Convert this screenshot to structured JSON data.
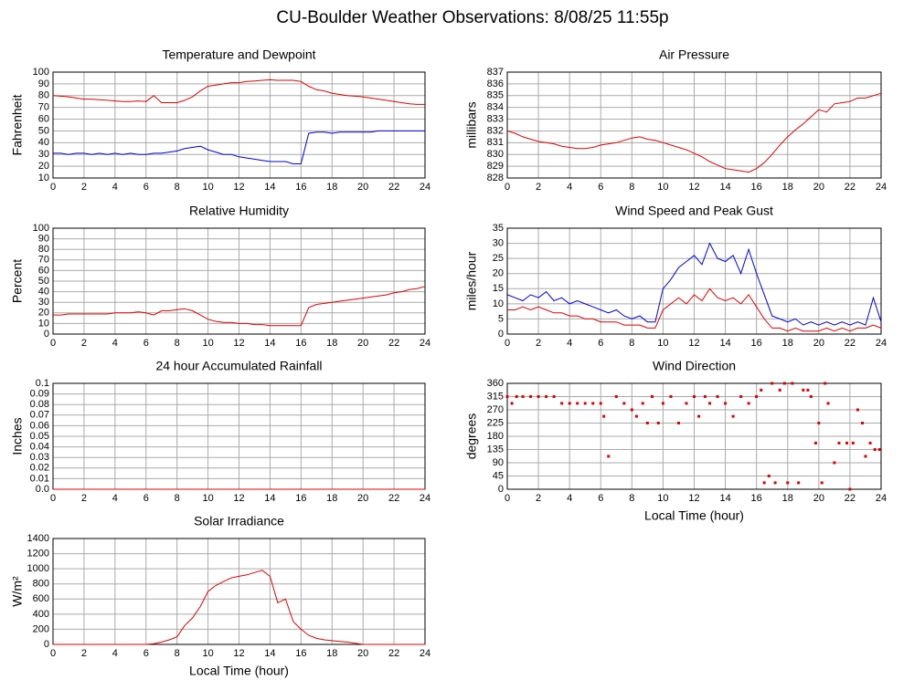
{
  "title": "CU-Boulder Weather Observations: 8/08/25 11:55p",
  "chart_data": [
    {
      "type": "line",
      "title": "Temperature and Dewpoint",
      "ylabel": "Fahrenheit",
      "x": [
        0,
        0.5,
        1,
        1.5,
        2,
        2.5,
        3,
        3.5,
        4,
        4.5,
        5,
        5.5,
        6,
        6.5,
        7,
        7.5,
        8,
        8.5,
        9,
        9.5,
        10,
        10.5,
        11,
        11.5,
        12,
        12.5,
        13,
        13.5,
        14,
        14.5,
        15,
        15.5,
        16,
        16.5,
        17,
        17.5,
        18,
        18.5,
        19,
        19.5,
        20,
        20.5,
        21,
        21.5,
        22,
        22.5,
        23,
        23.5,
        24
      ],
      "series": [
        {
          "color": "#e00000",
          "values": [
            80,
            79.5,
            79,
            78,
            77,
            77,
            76.5,
            76,
            75.5,
            75,
            75,
            75.5,
            75,
            80,
            74,
            74,
            74,
            76,
            79,
            84,
            88,
            89,
            90,
            91,
            91,
            92,
            92.5,
            93,
            93.5,
            93,
            93,
            93,
            92,
            88,
            85,
            84,
            82,
            81,
            80,
            79.5,
            79,
            78,
            77,
            76,
            75,
            74,
            73,
            72.5,
            72.5
          ]
        },
        {
          "color": "#0000dd",
          "values": [
            31,
            31,
            30,
            31,
            31,
            30,
            31,
            30,
            31,
            30,
            31,
            30,
            30,
            31,
            31,
            32,
            33,
            35,
            36,
            37,
            34,
            32,
            30,
            30,
            28,
            27,
            26,
            25,
            24,
            24,
            24,
            22,
            22,
            48,
            49,
            49,
            48,
            49,
            49,
            49,
            49,
            49,
            50,
            50,
            50,
            50,
            50,
            50,
            50
          ]
        }
      ],
      "xlim": [
        0,
        24
      ],
      "xticks": [
        0,
        2,
        4,
        6,
        8,
        10,
        12,
        14,
        16,
        18,
        20,
        22,
        24
      ],
      "ylim": [
        10,
        100
      ],
      "yticks": [
        10,
        20,
        30,
        40,
        50,
        60,
        70,
        80,
        90,
        100
      ],
      "grid": true
    },
    {
      "type": "line",
      "title": "Air Pressure",
      "ylabel": "millibars",
      "x": [
        0,
        0.5,
        1,
        1.5,
        2,
        2.5,
        3,
        3.5,
        4,
        4.5,
        5,
        5.5,
        6,
        6.5,
        7,
        7.5,
        8,
        8.5,
        9,
        9.5,
        10,
        10.5,
        11,
        11.5,
        12,
        12.5,
        13,
        13.5,
        14,
        14.5,
        15,
        15.5,
        16,
        16.5,
        17,
        17.5,
        18,
        18.5,
        19,
        19.5,
        20,
        20.5,
        21,
        21.5,
        22,
        22.5,
        23,
        23.5,
        24
      ],
      "color": "#e00000",
      "values": [
        832,
        831.8,
        831.5,
        831.3,
        831.1,
        831,
        830.9,
        830.7,
        830.6,
        830.5,
        830.5,
        830.6,
        830.8,
        830.9,
        831,
        831.2,
        831.4,
        831.5,
        831.3,
        831.2,
        831,
        830.8,
        830.6,
        830.4,
        830.1,
        829.8,
        829.4,
        829.1,
        828.8,
        828.7,
        828.6,
        828.5,
        828.8,
        829.3,
        830,
        830.8,
        831.5,
        832.1,
        832.6,
        833.2,
        833.8,
        833.6,
        834.3,
        834.4,
        834.5,
        834.8,
        834.8,
        835,
        835.2
      ],
      "xlim": [
        0,
        24
      ],
      "xticks": [
        0,
        2,
        4,
        6,
        8,
        10,
        12,
        14,
        16,
        18,
        20,
        22,
        24
      ],
      "ylim": [
        828,
        837
      ],
      "yticks": [
        828,
        829,
        830,
        831,
        832,
        833,
        834,
        835,
        836,
        837
      ],
      "grid": true
    },
    {
      "type": "line",
      "title": "Relative Humidity",
      "ylabel": "Percent",
      "x": [
        0,
        0.5,
        1,
        1.5,
        2,
        2.5,
        3,
        3.5,
        4,
        4.5,
        5,
        5.5,
        6,
        6.5,
        7,
        7.5,
        8,
        8.5,
        9,
        9.5,
        10,
        10.5,
        11,
        11.5,
        12,
        12.5,
        13,
        13.5,
        14,
        14.5,
        15,
        15.5,
        16,
        16.5,
        17,
        17.5,
        18,
        18.5,
        19,
        19.5,
        20,
        20.5,
        21,
        21.5,
        22,
        22.5,
        23,
        23.5,
        24
      ],
      "color": "#e00000",
      "values": [
        18,
        18,
        19,
        19,
        19,
        19,
        19,
        19,
        20,
        20,
        20,
        21,
        20,
        18,
        22,
        22,
        23,
        24,
        22,
        18,
        14,
        12,
        11,
        11,
        10,
        10,
        9,
        9,
        8,
        8,
        8,
        8,
        8,
        25,
        28,
        29,
        30,
        31,
        32,
        33,
        34,
        35,
        36,
        37,
        39,
        40,
        42,
        43,
        45
      ],
      "xlim": [
        0,
        24
      ],
      "xticks": [
        0,
        2,
        4,
        6,
        8,
        10,
        12,
        14,
        16,
        18,
        20,
        22,
        24
      ],
      "ylim": [
        0,
        100
      ],
      "yticks": [
        0,
        10,
        20,
        30,
        40,
        50,
        60,
        70,
        80,
        90,
        100
      ],
      "grid": true
    },
    {
      "type": "line",
      "title": "Wind Speed and Peak Gust",
      "ylabel": "miles/hour",
      "x": [
        0,
        0.5,
        1,
        1.5,
        2,
        2.5,
        3,
        3.5,
        4,
        4.5,
        5,
        5.5,
        6,
        6.5,
        7,
        7.5,
        8,
        8.5,
        9,
        9.5,
        10,
        10.5,
        11,
        11.5,
        12,
        12.5,
        13,
        13.5,
        14,
        14.5,
        15,
        15.5,
        16,
        16.5,
        17,
        17.5,
        18,
        18.5,
        19,
        19.5,
        20,
        20.5,
        21,
        21.5,
        22,
        22.5,
        23,
        23.5,
        24
      ],
      "series": [
        {
          "color": "#0000dd",
          "values": [
            13,
            12,
            11,
            13,
            12,
            14,
            11,
            12,
            10,
            11,
            10,
            9,
            8,
            7,
            8,
            6,
            5,
            6,
            4,
            4,
            15,
            18,
            22,
            24,
            26,
            23,
            30,
            25,
            24,
            26,
            20,
            28,
            20,
            13,
            6,
            5,
            4,
            5,
            3,
            4,
            3,
            4,
            3,
            4,
            3,
            4,
            3,
            12,
            4
          ]
        },
        {
          "color": "#e00000",
          "values": [
            8,
            8,
            9,
            8,
            9,
            8,
            7,
            7,
            6,
            6,
            5,
            5,
            4,
            4,
            4,
            3,
            3,
            3,
            2,
            2,
            8,
            10,
            12,
            10,
            13,
            11,
            15,
            12,
            11,
            12,
            10,
            13,
            9,
            5,
            2,
            2,
            1,
            2,
            1,
            1,
            1,
            2,
            1,
            2,
            1,
            2,
            2,
            3,
            2
          ]
        }
      ],
      "xlim": [
        0,
        24
      ],
      "xticks": [
        0,
        2,
        4,
        6,
        8,
        10,
        12,
        14,
        16,
        18,
        20,
        22,
        24
      ],
      "ylim": [
        0,
        35
      ],
      "yticks": [
        0,
        5,
        10,
        15,
        20,
        25,
        30,
        35
      ],
      "grid": true
    },
    {
      "type": "line",
      "title": "24 hour Accumulated Rainfall",
      "ylabel": "Inches",
      "x": [
        0,
        24
      ],
      "color": "#e00000",
      "values": [
        0,
        0
      ],
      "xlim": [
        0,
        24
      ],
      "xticks": [
        0,
        2,
        4,
        6,
        8,
        10,
        12,
        14,
        16,
        18,
        20,
        22,
        24
      ],
      "ylim": [
        0,
        0.1
      ],
      "yticks": [
        {
          "value": 0,
          "label": "0.0"
        },
        0.01,
        0.02,
        0.03,
        0.04,
        0.05,
        0.06,
        0.07,
        0.08,
        0.09,
        0.1
      ],
      "grid": true
    },
    {
      "type": "scatter",
      "title": "Wind Direction",
      "ylabel": "degrees",
      "xlabel": "Local Time (hour)",
      "x": [
        0,
        0.3,
        0.6,
        1,
        1.5,
        2,
        2.5,
        3,
        3.5,
        4,
        4.5,
        5,
        5.5,
        6,
        6.2,
        6.5,
        7,
        7.5,
        8,
        8.3,
        8.7,
        9,
        9.3,
        9.7,
        10,
        10.5,
        11,
        11.5,
        12,
        12.3,
        12.7,
        13,
        13.5,
        14,
        14.5,
        15,
        15.5,
        16,
        16.3,
        16.5,
        16.8,
        17,
        17.2,
        17.5,
        17.8,
        18,
        18.3,
        18.7,
        19,
        19.3,
        19.5,
        19.8,
        20,
        20.2,
        20.4,
        20.6,
        21,
        21.3,
        21.8,
        22,
        22.2,
        22.5,
        22.8,
        23,
        23.3,
        23.6,
        23.9
      ],
      "color": "#e00000",
      "values": [
        315,
        292,
        315,
        315,
        315,
        315,
        315,
        315,
        292,
        292,
        292,
        292,
        292,
        292,
        248,
        112,
        315,
        292,
        270,
        248,
        292,
        225,
        315,
        225,
        292,
        315,
        225,
        292,
        315,
        248,
        315,
        292,
        315,
        292,
        248,
        315,
        292,
        315,
        337,
        22,
        45,
        360,
        22,
        337,
        360,
        22,
        360,
        22,
        337,
        337,
        315,
        157,
        225,
        22,
        360,
        292,
        90,
        157,
        157,
        0,
        157,
        270,
        225,
        112,
        157,
        135,
        135
      ],
      "xlim": [
        0,
        24
      ],
      "xticks": [
        0,
        2,
        4,
        6,
        8,
        10,
        12,
        14,
        16,
        18,
        20,
        22,
        24
      ],
      "ylim": [
        0,
        360
      ],
      "yticks": [
        0,
        45,
        90,
        135,
        180,
        225,
        270,
        315,
        360
      ],
      "grid": true
    },
    {
      "type": "line",
      "title": "Solar Irradiance",
      "ylabel": "W/m²",
      "xlabel": "Local Time (hour)",
      "x": [
        0,
        0.5,
        1,
        1.5,
        2,
        2.5,
        3,
        3.5,
        4,
        4.5,
        5,
        5.5,
        6,
        6.5,
        7,
        7.5,
        8,
        8.5,
        9,
        9.5,
        10,
        10.5,
        11,
        11.5,
        12,
        12.5,
        13,
        13.5,
        14,
        14.5,
        15,
        15.5,
        16,
        16.5,
        17,
        17.5,
        18,
        18.5,
        19,
        19.5,
        20,
        20.5,
        21,
        21.5,
        22,
        22.5,
        23,
        23.5,
        24
      ],
      "color": "#e00000",
      "values": [
        0,
        0,
        0,
        0,
        0,
        0,
        0,
        0,
        0,
        0,
        0,
        0,
        0,
        10,
        30,
        60,
        100,
        250,
        350,
        500,
        700,
        780,
        830,
        880,
        900,
        920,
        950,
        980,
        900,
        550,
        600,
        300,
        200,
        120,
        80,
        60,
        50,
        40,
        30,
        15,
        0,
        0,
        0,
        0,
        0,
        0,
        0,
        0,
        0
      ],
      "xlim": [
        0,
        24
      ],
      "xticks": [
        0,
        2,
        4,
        6,
        8,
        10,
        12,
        14,
        16,
        18,
        20,
        22,
        24
      ],
      "ylim": [
        0,
        1400
      ],
      "yticks": [
        0,
        200,
        400,
        600,
        800,
        1000,
        1200,
        1400
      ],
      "grid": true
    }
  ]
}
